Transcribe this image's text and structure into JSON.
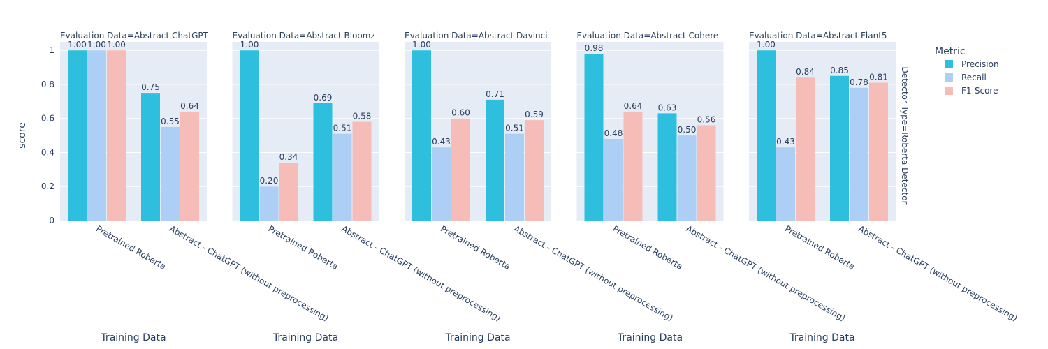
{
  "chart_data": {
    "type": "bar",
    "ylabel": "score",
    "xlabel": "Training Data",
    "ylim": [
      0,
      1.05
    ],
    "yticks": [
      "0",
      "0.2",
      "0.4",
      "0.6",
      "0.8",
      "1"
    ],
    "ytick_values": [
      0,
      0.2,
      0.4,
      0.6,
      0.8,
      1
    ],
    "row_facet": "Detector Type=Roberta Detector",
    "legend": {
      "title": "Metric",
      "placement": "right",
      "items": [
        {
          "name": "Precision",
          "color": "#2fbfde"
        },
        {
          "name": "Recall",
          "color": "#aecff5"
        },
        {
          "name": "F1-Score",
          "color": "#f6bcb7"
        }
      ]
    },
    "categories": [
      "Pretrained Roberta",
      "Abstract - ChatGPT (without preprocessing)"
    ],
    "panels": [
      {
        "title": "Evaluation Data=Abstract ChatGPT",
        "series": [
          {
            "name": "Precision",
            "values": [
              1.0,
              0.75
            ],
            "labels": [
              "1.00",
              "0.75"
            ]
          },
          {
            "name": "Recall",
            "values": [
              1.0,
              0.55
            ],
            "labels": [
              "1.00",
              "0.55"
            ]
          },
          {
            "name": "F1-Score",
            "values": [
              1.0,
              0.64
            ],
            "labels": [
              "1.00",
              "0.64"
            ]
          }
        ]
      },
      {
        "title": "Evaluation Data=Abstract Bloomz",
        "series": [
          {
            "name": "Precision",
            "values": [
              1.0,
              0.69
            ],
            "labels": [
              "1.00",
              "0.69"
            ]
          },
          {
            "name": "Recall",
            "values": [
              0.2,
              0.51
            ],
            "labels": [
              "0.20",
              "0.51"
            ]
          },
          {
            "name": "F1-Score",
            "values": [
              0.34,
              0.58
            ],
            "labels": [
              "0.34",
              "0.58"
            ]
          }
        ]
      },
      {
        "title": "Evaluation Data=Abstract Davinci",
        "series": [
          {
            "name": "Precision",
            "values": [
              1.0,
              0.71
            ],
            "labels": [
              "1.00",
              "0.71"
            ]
          },
          {
            "name": "Recall",
            "values": [
              0.43,
              0.51
            ],
            "labels": [
              "0.43",
              "0.51"
            ]
          },
          {
            "name": "F1-Score",
            "values": [
              0.6,
              0.59
            ],
            "labels": [
              "0.60",
              "0.59"
            ]
          }
        ]
      },
      {
        "title": "Evaluation Data=Abstract Cohere",
        "series": [
          {
            "name": "Precision",
            "values": [
              0.98,
              0.63
            ],
            "labels": [
              "0.98",
              "0.63"
            ]
          },
          {
            "name": "Recall",
            "values": [
              0.48,
              0.5
            ],
            "labels": [
              "0.48",
              "0.50"
            ]
          },
          {
            "name": "F1-Score",
            "values": [
              0.64,
              0.56
            ],
            "labels": [
              "0.64",
              "0.56"
            ]
          }
        ]
      },
      {
        "title": "Evaluation Data=Abstract Flant5",
        "series": [
          {
            "name": "Precision",
            "values": [
              1.0,
              0.85
            ],
            "labels": [
              "1.00",
              "0.85"
            ]
          },
          {
            "name": "Recall",
            "values": [
              0.43,
              0.78
            ],
            "labels": [
              "0.43",
              "0.78"
            ]
          },
          {
            "name": "F1-Score",
            "values": [
              0.84,
              0.81
            ],
            "labels": [
              "0.84",
              "0.81"
            ]
          }
        ]
      }
    ]
  }
}
